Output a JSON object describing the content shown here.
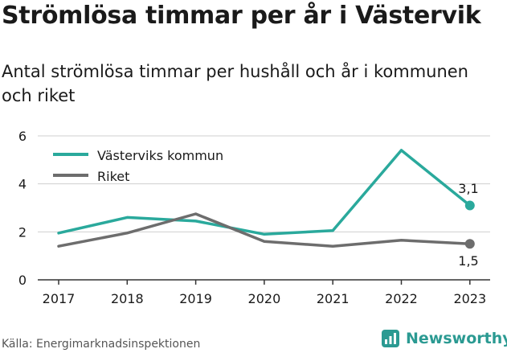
{
  "title": "Strömlösa timmar per år i Västervik",
  "subtitle": "Antal strömlösa timmar per hushåll och år i kommunen och riket",
  "source": "Källa: Energimarknadsinspektionen",
  "brand": "Newsworthy",
  "colors": {
    "vastervik": "#2aa99c",
    "riket": "#6d6d6d",
    "grid": "#cfcfcf",
    "axis": "#333333",
    "brand": "#2b9a92"
  },
  "chart_data": {
    "type": "line",
    "x": [
      "2017",
      "2018",
      "2019",
      "2020",
      "2021",
      "2022",
      "2023"
    ],
    "y_ticks": [
      "0",
      "2",
      "4",
      "6"
    ],
    "ylim": [
      0,
      6
    ],
    "grid": true,
    "legend_position": "top-left",
    "series": [
      {
        "name": "Västerviks kommun",
        "values": [
          1.95,
          2.6,
          2.45,
          1.9,
          2.05,
          5.4,
          3.1
        ],
        "end_label": "3,1"
      },
      {
        "name": "Riket",
        "values": [
          1.4,
          1.95,
          2.75,
          1.6,
          1.4,
          1.65,
          1.5
        ],
        "end_label": "1,5"
      }
    ]
  }
}
